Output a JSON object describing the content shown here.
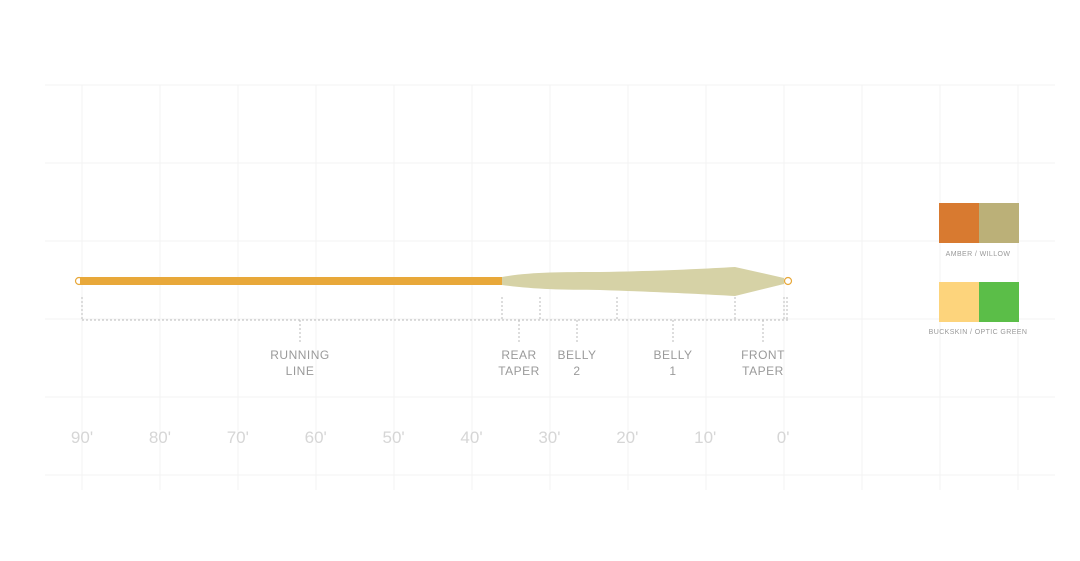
{
  "segments": [
    {
      "label": "RUNNING\nLINE"
    },
    {
      "label": "REAR\nTAPER"
    },
    {
      "label": "BELLY\n2"
    },
    {
      "label": "BELLY\n1"
    },
    {
      "label": "FRONT\nTAPER"
    }
  ],
  "axis_ticks": [
    "90'",
    "80'",
    "70'",
    "60'",
    "50'",
    "40'",
    "30'",
    "20'",
    "10'",
    "0'"
  ],
  "colors": {
    "running_line": "#E8A83A",
    "head": "#D6D2A6",
    "grid": "#F2F2F2"
  },
  "legend": [
    {
      "label": "AMBER / WILLOW",
      "colors": [
        "#D87A30",
        "#BBB078"
      ]
    },
    {
      "label": "BUCKSKIN / OPTIC GREEN",
      "colors": [
        "#FDD47C",
        "#5BBE48"
      ]
    }
  ]
}
